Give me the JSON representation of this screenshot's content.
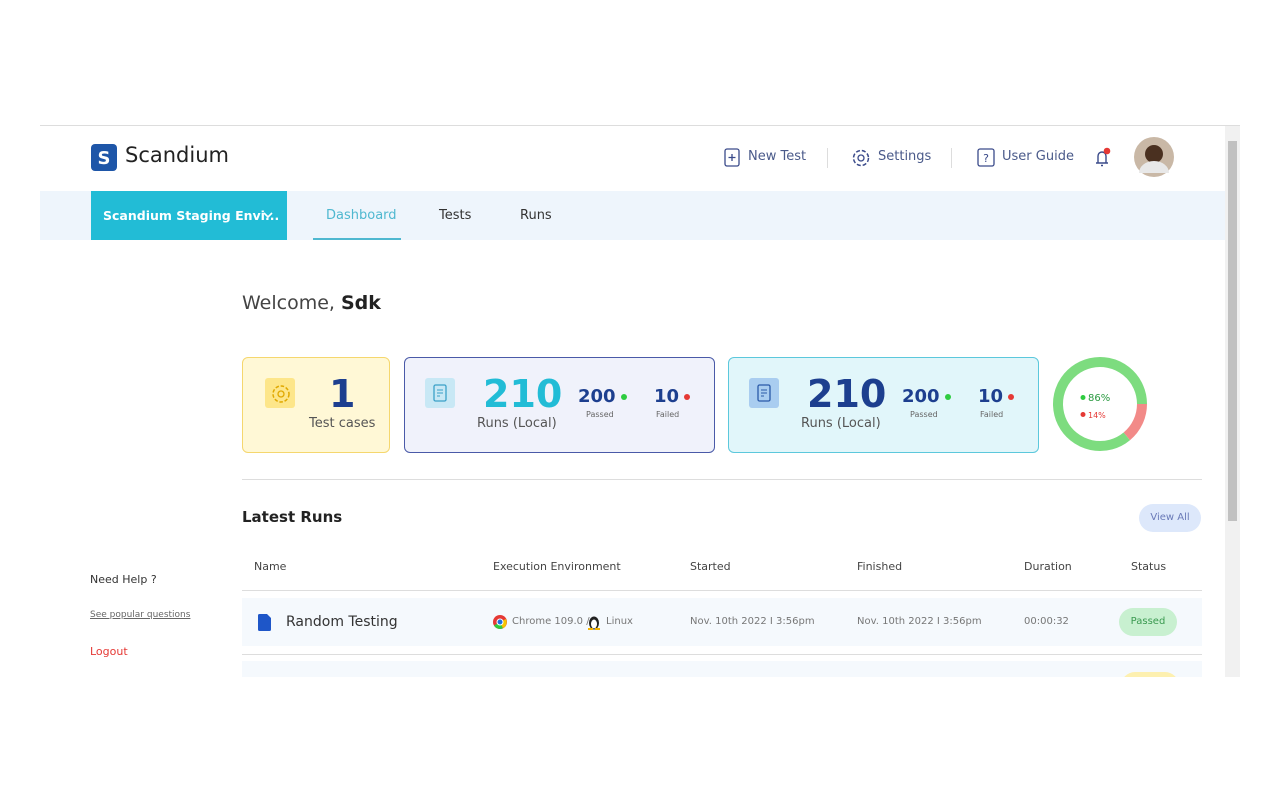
{
  "header": {
    "brand": "Scandium",
    "nav": [
      "New Test",
      "Settings",
      "User Guide"
    ]
  },
  "tabs": {
    "environment": "Scandium Staging Envi...",
    "items": [
      "Dashboard",
      "Tests",
      "Runs"
    ]
  },
  "welcome": {
    "greeting": "Welcome,",
    "user": "Sdk"
  },
  "cards": [
    {
      "count": 1,
      "label": "Test cases"
    },
    {
      "count": 210,
      "label": "Runs (Local)",
      "passed": 200,
      "passed_label": "Passed",
      "failed": 10,
      "failed_label": "Failed"
    },
    {
      "count": 210,
      "label": "Runs (Local)",
      "passed": 200,
      "passed_label": "Passed",
      "failed": 10,
      "failed_label": "Failed"
    }
  ],
  "donut": {
    "values": [
      86,
      14
    ],
    "value_labels": [
      "86%",
      "14%"
    ],
    "colors": [
      "#7ddc7f",
      "#f28a88"
    ]
  },
  "latest_runs": {
    "title": "Latest Runs",
    "view_all": "View All",
    "columns": [
      "Name",
      "Execution Environment",
      "Started",
      "Finished",
      "Duration",
      "Status"
    ],
    "rows": [
      {
        "name": "Random Testing",
        "browser": "Chrome 109.0 /",
        "os": "Linux",
        "started": "Nov. 10th 2022 I 3:56pm",
        "finished": "Nov. 10th 2022 I 3:56pm",
        "duration": "00:00:32",
        "status": "Passed"
      }
    ]
  },
  "sidebar": {
    "help": "Need Help ?",
    "faq": "See popular questions",
    "logout": "Logout"
  }
}
